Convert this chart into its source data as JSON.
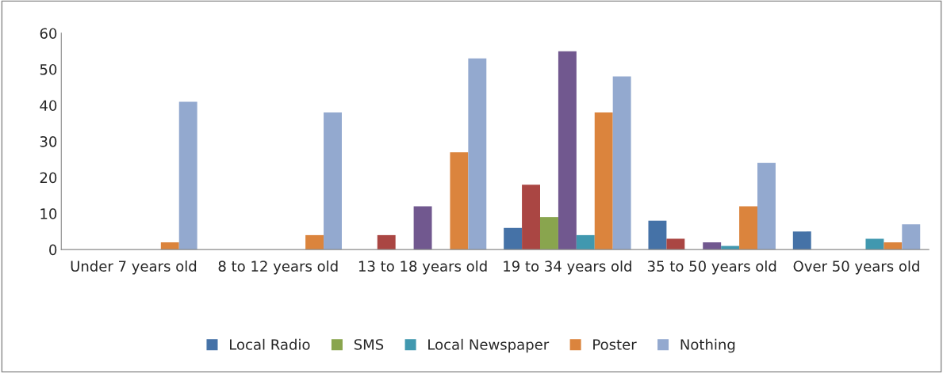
{
  "chart_data": {
    "type": "bar",
    "categories": [
      "Under 7 years old",
      "8 to 12 years old",
      "13 to 18 years old",
      "19 to 34 years old",
      "35 to 50 years old",
      "Over 50 years old"
    ],
    "series": [
      {
        "name": "Local Radio",
        "color": "#4572a7",
        "values": [
          0,
          0,
          0,
          6,
          8,
          5
        ]
      },
      {
        "color": "#aa4643",
        "values": [
          0,
          0,
          4,
          18,
          3,
          0
        ]
      },
      {
        "name": "SMS",
        "color": "#89a54e",
        "values": [
          0,
          0,
          0,
          9,
          0,
          0
        ]
      },
      {
        "color": "#71588f",
        "values": [
          0,
          0,
          12,
          55,
          2,
          0
        ]
      },
      {
        "name": "Local Newspaper",
        "color": "#4198af",
        "values": [
          0,
          0,
          0,
          4,
          1,
          3
        ]
      },
      {
        "name": "Poster",
        "color": "#db843d",
        "values": [
          2,
          4,
          27,
          38,
          12,
          2
        ]
      },
      {
        "name": "Nothing",
        "color": "#93a9cf",
        "values": [
          41,
          38,
          53,
          48,
          24,
          7
        ]
      }
    ],
    "ylim": [
      0,
      60
    ],
    "yticks": [
      0,
      10,
      20,
      30,
      40,
      50,
      60
    ],
    "grid": false,
    "legend": "bottom"
  }
}
